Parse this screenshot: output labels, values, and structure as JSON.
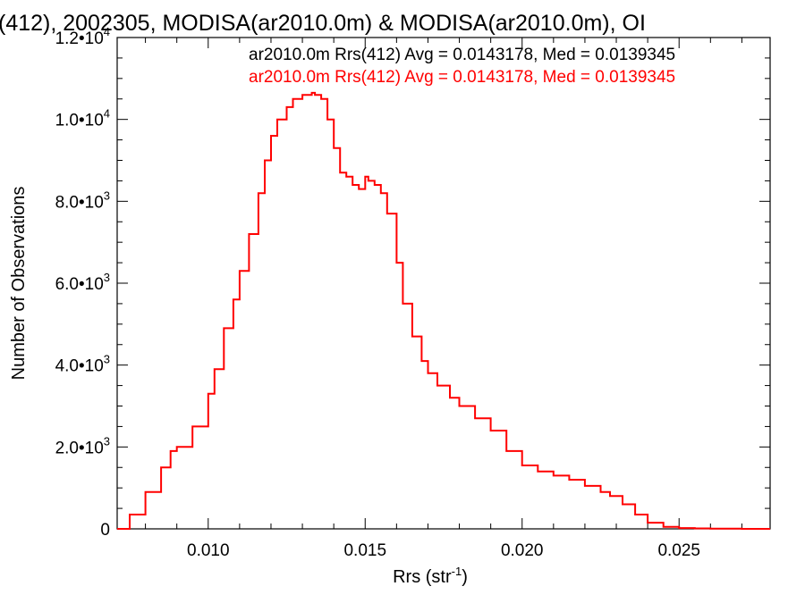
{
  "chart_data": {
    "type": "line",
    "title": "(412), 2002305, MODISA(ar2010.0m) & MODISA(ar2010.0m), OI",
    "xlabel": "Rrs (str",
    "xlabel_sup": "-1",
    "xlabel_close": ")",
    "ylabel": "Number of Observations",
    "xlim": [
      0.0071,
      0.0279
    ],
    "ylim": [
      0,
      12000
    ],
    "x_ticks": [
      {
        "value": 0.01,
        "label": "0.010"
      },
      {
        "value": 0.015,
        "label": "0.015"
      },
      {
        "value": 0.02,
        "label": "0.020"
      },
      {
        "value": 0.025,
        "label": "0.025"
      }
    ],
    "y_ticks": [
      {
        "value": 0,
        "label": "0",
        "exp": ""
      },
      {
        "value": 2000,
        "label": "2.0•10",
        "exp": "3"
      },
      {
        "value": 4000,
        "label": "4.0•10",
        "exp": "3"
      },
      {
        "value": 6000,
        "label": "6.0•10",
        "exp": "3"
      },
      {
        "value": 8000,
        "label": "8.0•10",
        "exp": "3"
      },
      {
        "value": 10000,
        "label": "1.0•10",
        "exp": "4"
      },
      {
        "value": 12000,
        "label": "1.2•10",
        "exp": "4"
      }
    ],
    "legend": [
      {
        "text": "ar2010.0m Rrs(412) Avg = 0.0143178, Med = 0.0139345",
        "color": "#000000"
      },
      {
        "text": "ar2010.0m Rrs(412) Avg = 0.0143178, Med = 0.0139345",
        "color": "#ff0000"
      }
    ],
    "series": [
      {
        "color": "#ff0000",
        "step": true,
        "x": [
          0.0071,
          0.0075,
          0.008,
          0.0085,
          0.0088,
          0.009,
          0.0095,
          0.01,
          0.0102,
          0.0105,
          0.0108,
          0.011,
          0.0113,
          0.0116,
          0.0118,
          0.012,
          0.0122,
          0.0125,
          0.0127,
          0.013,
          0.0132,
          0.0133,
          0.0134,
          0.0136,
          0.0138,
          0.014,
          0.0142,
          0.0144,
          0.0146,
          0.0148,
          0.015,
          0.0151,
          0.0153,
          0.0155,
          0.0157,
          0.016,
          0.0162,
          0.0165,
          0.0168,
          0.017,
          0.0173,
          0.0177,
          0.018,
          0.0185,
          0.019,
          0.0195,
          0.02,
          0.0205,
          0.021,
          0.0215,
          0.022,
          0.0225,
          0.0228,
          0.0232,
          0.0236,
          0.024,
          0.0245,
          0.025,
          0.0255,
          0.026,
          0.027,
          0.0279
        ],
        "y": [
          0,
          350,
          900,
          1500,
          1900,
          2000,
          2500,
          3300,
          3900,
          4900,
          5600,
          6300,
          7200,
          8200,
          9000,
          9600,
          10000,
          10300,
          10500,
          10600,
          10600,
          10650,
          10600,
          10500,
          10000,
          9300,
          8700,
          8600,
          8400,
          8300,
          8600,
          8500,
          8400,
          8200,
          7700,
          6500,
          5500,
          4700,
          4100,
          3800,
          3500,
          3200,
          3000,
          2700,
          2400,
          1900,
          1550,
          1400,
          1300,
          1200,
          1050,
          900,
          800,
          600,
          350,
          150,
          50,
          20,
          10,
          5,
          0,
          0
        ]
      }
    ]
  }
}
